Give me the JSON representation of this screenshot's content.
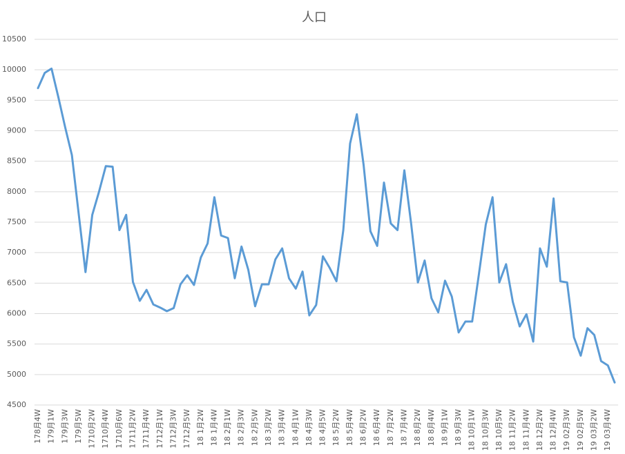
{
  "chart_data": {
    "type": "line",
    "title": "人口",
    "categories": [
      "178月4W",
      null,
      "179月1W",
      null,
      "179月3W",
      null,
      "179月5W",
      null,
      "1710月2W",
      null,
      "1710月4W",
      null,
      "1710月6W",
      null,
      "1711月2W",
      null,
      "1711月4W",
      null,
      "1712月1W",
      null,
      "1712月3W",
      null,
      "1712月5W",
      null,
      "18 1月2W",
      null,
      "18 1月4W",
      null,
      "18 2月1W",
      null,
      "18 2月3W",
      null,
      "18 2月5W",
      null,
      "18 3月2W",
      null,
      "18 3月4W",
      null,
      "18 4月1W",
      null,
      "18 4月3W",
      null,
      "18 4月5W",
      null,
      "18 5月2W",
      null,
      "18 5月4W",
      null,
      "18 6月2W",
      null,
      "18 6月4W",
      null,
      "18 7月2W",
      null,
      "18 7月4W",
      null,
      "18 8月2W",
      null,
      "18 8月4W",
      null,
      "18 9月1W",
      null,
      "18 9月3W",
      null,
      "18 10月1W",
      null,
      "18 10月3W",
      null,
      "18 10月5W",
      null,
      "18 11月2W",
      null,
      "18 11月4W",
      null,
      "18 12月2W",
      null,
      "18 12月4W",
      null,
      "19 02月3W",
      null,
      "19 02月5W",
      null,
      "19 03月2W",
      null,
      "19 03月4W",
      null
    ],
    "series": [
      {
        "name": "人口",
        "color": "#5b9bd5",
        "values": [
          9700,
          9950,
          10020,
          9550,
          9060,
          8600,
          7640,
          6680,
          7620,
          8000,
          8420,
          8410,
          7370,
          7620,
          6520,
          6210,
          6390,
          6150,
          6100,
          6040,
          6090,
          6480,
          6630,
          6470,
          6920,
          7150,
          7910,
          7280,
          7240,
          6580,
          7100,
          6720,
          6120,
          6480,
          6480,
          6890,
          7070,
          6580,
          6410,
          6690,
          5970,
          6140,
          6940,
          6750,
          6530,
          7370,
          8790,
          9270,
          8440,
          7350,
          7110,
          8150,
          7480,
          7370,
          8350,
          7480,
          6510,
          6870,
          6250,
          6020,
          6540,
          6280,
          5690,
          5870,
          5870,
          6650,
          7460,
          7910,
          6510,
          6810,
          6190,
          5790,
          5990,
          5540,
          7070,
          6770,
          7890,
          6530,
          6510,
          5610,
          5310,
          5760,
          5650,
          5220,
          5150,
          4870
        ]
      }
    ],
    "ylim": [
      4500,
      10500
    ],
    "yticks": [
      4500,
      5000,
      5500,
      6000,
      6500,
      7000,
      7500,
      8000,
      8500,
      9000,
      9500,
      10000,
      10500
    ],
    "grid": true
  }
}
